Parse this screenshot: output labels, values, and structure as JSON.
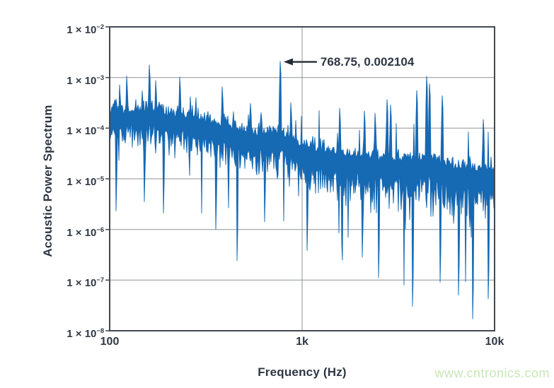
{
  "figure": {
    "background": "#ffffff"
  },
  "colors": {
    "text": "#2f3744",
    "grid": "#8e9095",
    "frame": "#43484f",
    "arrow": "#262c35",
    "series": "#1669b3",
    "watermark": "#c8e6b6"
  },
  "watermark": {
    "text": "www.cntronics.com"
  },
  "chart_data": {
    "type": "line",
    "title": "",
    "xlabel": "Frequency (Hz)",
    "ylabel": "Acoustic Power Spectrum",
    "x_scale": "log",
    "y_scale": "log",
    "xlim": [
      100,
      10000
    ],
    "ylim": [
      1e-08,
      0.01
    ],
    "grid": {
      "horizontal_at": [
        0.001,
        0.0001,
        1e-05,
        1e-06,
        1e-07
      ],
      "vertical_at": [
        1000
      ]
    },
    "legend": "none",
    "x_ticks": [
      {
        "label": "100",
        "value": 100
      },
      {
        "label": "1k",
        "value": 1000
      },
      {
        "label": "10k",
        "value": 10000
      }
    ],
    "y_ticks": [
      {
        "coefficient": "1 × 10",
        "exponent": -2,
        "value": 0.01
      },
      {
        "coefficient": "1 × 10",
        "exponent": -3,
        "value": 0.001
      },
      {
        "coefficient": "1 × 10",
        "exponent": -4,
        "value": 0.0001
      },
      {
        "coefficient": "1 × 10",
        "exponent": -5,
        "value": 1e-05
      },
      {
        "coefficient": "1 × 10",
        "exponent": -6,
        "value": 1e-06
      },
      {
        "coefficient": "1 × 10",
        "exponent": -7,
        "value": 1e-07
      },
      {
        "coefficient": "1 × 10",
        "exponent": -8,
        "value": 1e-08
      }
    ],
    "annotation": {
      "text": "768.75, 0.002104",
      "x": 768.75,
      "y": 0.002104
    },
    "spectrum": {
      "description": "Dense FFT noise band, log-log, decreasing roughly one decade from 100 Hz to 10 kHz; hairline spikes up and down; dominant tone annotated at 768.75 Hz.",
      "seed": 7,
      "trend": [
        {
          "f": 100,
          "v": 0.00014
        },
        {
          "f": 130,
          "v": 0.00017
        },
        {
          "f": 160,
          "v": 0.00017
        },
        {
          "f": 200,
          "v": 0.00014
        },
        {
          "f": 260,
          "v": 0.00013
        },
        {
          "f": 330,
          "v": 0.0001
        },
        {
          "f": 420,
          "v": 8e-05
        },
        {
          "f": 560,
          "v": 6e-05
        },
        {
          "f": 760,
          "v": 6.5e-05
        },
        {
          "f": 1000,
          "v": 3.5e-05
        },
        {
          "f": 1400,
          "v": 2.6e-05
        },
        {
          "f": 2000,
          "v": 2.2e-05
        },
        {
          "f": 3000,
          "v": 1.8e-05
        },
        {
          "f": 4500,
          "v": 2.1e-05
        },
        {
          "f": 6300,
          "v": 1.3e-05
        },
        {
          "f": 10000,
          "v": 1.2e-05
        }
      ],
      "peaks": [
        {
          "f": 113,
          "v": 0.00072
        },
        {
          "f": 123,
          "v": 0.00108
        },
        {
          "f": 148,
          "v": 0.00055
        },
        {
          "f": 160,
          "v": 0.00178
        },
        {
          "f": 173,
          "v": 0.00088
        },
        {
          "f": 231,
          "v": 0.00103
        },
        {
          "f": 262,
          "v": 0.00042
        },
        {
          "f": 385,
          "v": 0.00066
        },
        {
          "f": 540,
          "v": 0.00031
        },
        {
          "f": 768.75,
          "v": 0.002104
        },
        {
          "f": 870,
          "v": 0.00032
        },
        {
          "f": 1560,
          "v": 0.00025
        },
        {
          "f": 2100,
          "v": 0.00022
        },
        {
          "f": 2400,
          "v": 0.0002
        },
        {
          "f": 2760,
          "v": 0.00037
        },
        {
          "f": 2880,
          "v": 0.00029
        },
        {
          "f": 3950,
          "v": 0.00056
        },
        {
          "f": 4420,
          "v": 0.00106
        },
        {
          "f": 4580,
          "v": 0.00076
        },
        {
          "f": 5350,
          "v": 0.00044
        },
        {
          "f": 8700,
          "v": 0.00015
        }
      ],
      "drops": [
        {
          "f": 108,
          "v": 2.3e-06
        },
        {
          "f": 152,
          "v": 3.5e-06
        },
        {
          "f": 190,
          "v": 2.1e-06
        },
        {
          "f": 356,
          "v": 1e-06
        },
        {
          "f": 460,
          "v": 2.4e-07
        },
        {
          "f": 640,
          "v": 1.4e-06
        },
        {
          "f": 1060,
          "v": 3.8e-07
        },
        {
          "f": 1600,
          "v": 5e-07
        },
        {
          "f": 2060,
          "v": 2.8e-07
        },
        {
          "f": 2500,
          "v": 1.1e-07
        },
        {
          "f": 3750,
          "v": 3e-08
        },
        {
          "f": 5200,
          "v": 9e-08
        },
        {
          "f": 6500,
          "v": 5e-08
        },
        {
          "f": 7700,
          "v": 1.7e-08
        },
        {
          "f": 9300,
          "v": 4.2e-08
        }
      ]
    }
  }
}
